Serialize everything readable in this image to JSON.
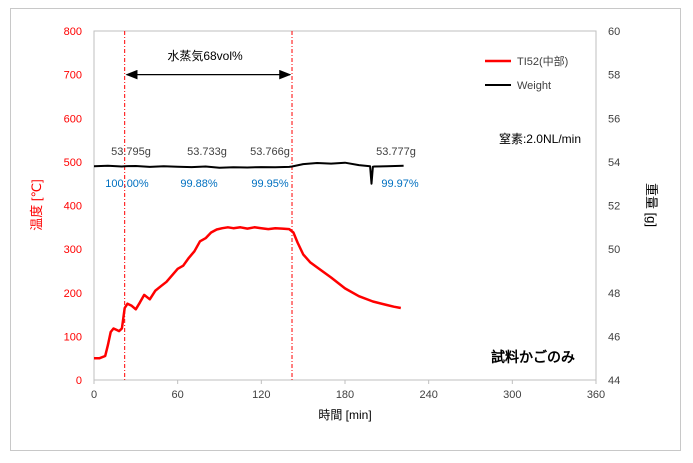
{
  "chart_data": {
    "type": "line",
    "xlabel": "時間 [min]",
    "ylabel_left": "温度 [℃]",
    "ylabel_right": "重量 [g]",
    "x_ticks": [
      "0",
      "60",
      "120",
      "180",
      "240",
      "300",
      "360"
    ],
    "y_left_ticks": [
      "0",
      "100",
      "200",
      "300",
      "400",
      "500",
      "600",
      "700",
      "800"
    ],
    "y_right_ticks": [
      "44",
      "46",
      "48",
      "50",
      "52",
      "54",
      "56",
      "58",
      "60"
    ],
    "xlim": [
      0,
      360
    ],
    "ylim_left": [
      0,
      800
    ],
    "ylim_right": [
      44,
      60
    ],
    "grid": false,
    "legend_position": "top-right",
    "series": [
      {
        "name": "TI52(中部)",
        "axis": "left",
        "color": "#ff0000",
        "x": [
          0,
          4,
          8,
          10,
          12,
          14,
          16,
          18,
          20,
          22,
          24,
          27,
          30,
          33,
          36,
          40,
          44,
          48,
          52,
          56,
          60,
          64,
          68,
          72,
          76,
          80,
          84,
          88,
          92,
          96,
          100,
          105,
          110,
          115,
          120,
          125,
          130,
          135,
          140,
          143,
          146,
          150,
          155,
          160,
          170,
          180,
          190,
          200,
          210,
          215,
          220
        ],
        "y": [
          50,
          50,
          55,
          80,
          110,
          118,
          115,
          112,
          118,
          165,
          175,
          170,
          162,
          178,
          195,
          185,
          205,
          215,
          225,
          240,
          255,
          262,
          280,
          295,
          318,
          325,
          338,
          345,
          348,
          350,
          348,
          350,
          347,
          350,
          348,
          346,
          348,
          347,
          346,
          338,
          315,
          288,
          270,
          258,
          235,
          210,
          192,
          180,
          172,
          168,
          165
        ]
      },
      {
        "name": "Weight",
        "axis": "right",
        "color": "#000000",
        "x": [
          0,
          10,
          20,
          22,
          30,
          40,
          50,
          60,
          70,
          80,
          90,
          100,
          110,
          120,
          130,
          140,
          142,
          150,
          160,
          170,
          180,
          190,
          198,
          199,
          200,
          201,
          210,
          222
        ],
        "y": [
          53.8,
          53.82,
          53.79,
          53.8,
          53.81,
          53.77,
          53.8,
          53.78,
          53.76,
          53.79,
          53.73,
          53.75,
          53.74,
          53.76,
          53.75,
          53.77,
          53.79,
          53.9,
          53.95,
          53.92,
          53.96,
          53.85,
          53.8,
          53.0,
          53.78,
          53.79,
          53.8,
          53.82
        ]
      }
    ],
    "annotations": {
      "steam_label": "水蒸気68vol%",
      "n2_label": "窒素:2.0NL/min",
      "sample_label": "試料かごのみ",
      "weights": [
        "53.795g",
        "53.733g",
        "53.766g",
        "53.777g"
      ],
      "ratios": [
        "100.00%",
        "99.88%",
        "99.95%",
        "99.97%"
      ],
      "vlines_x": [
        22,
        142
      ]
    }
  }
}
